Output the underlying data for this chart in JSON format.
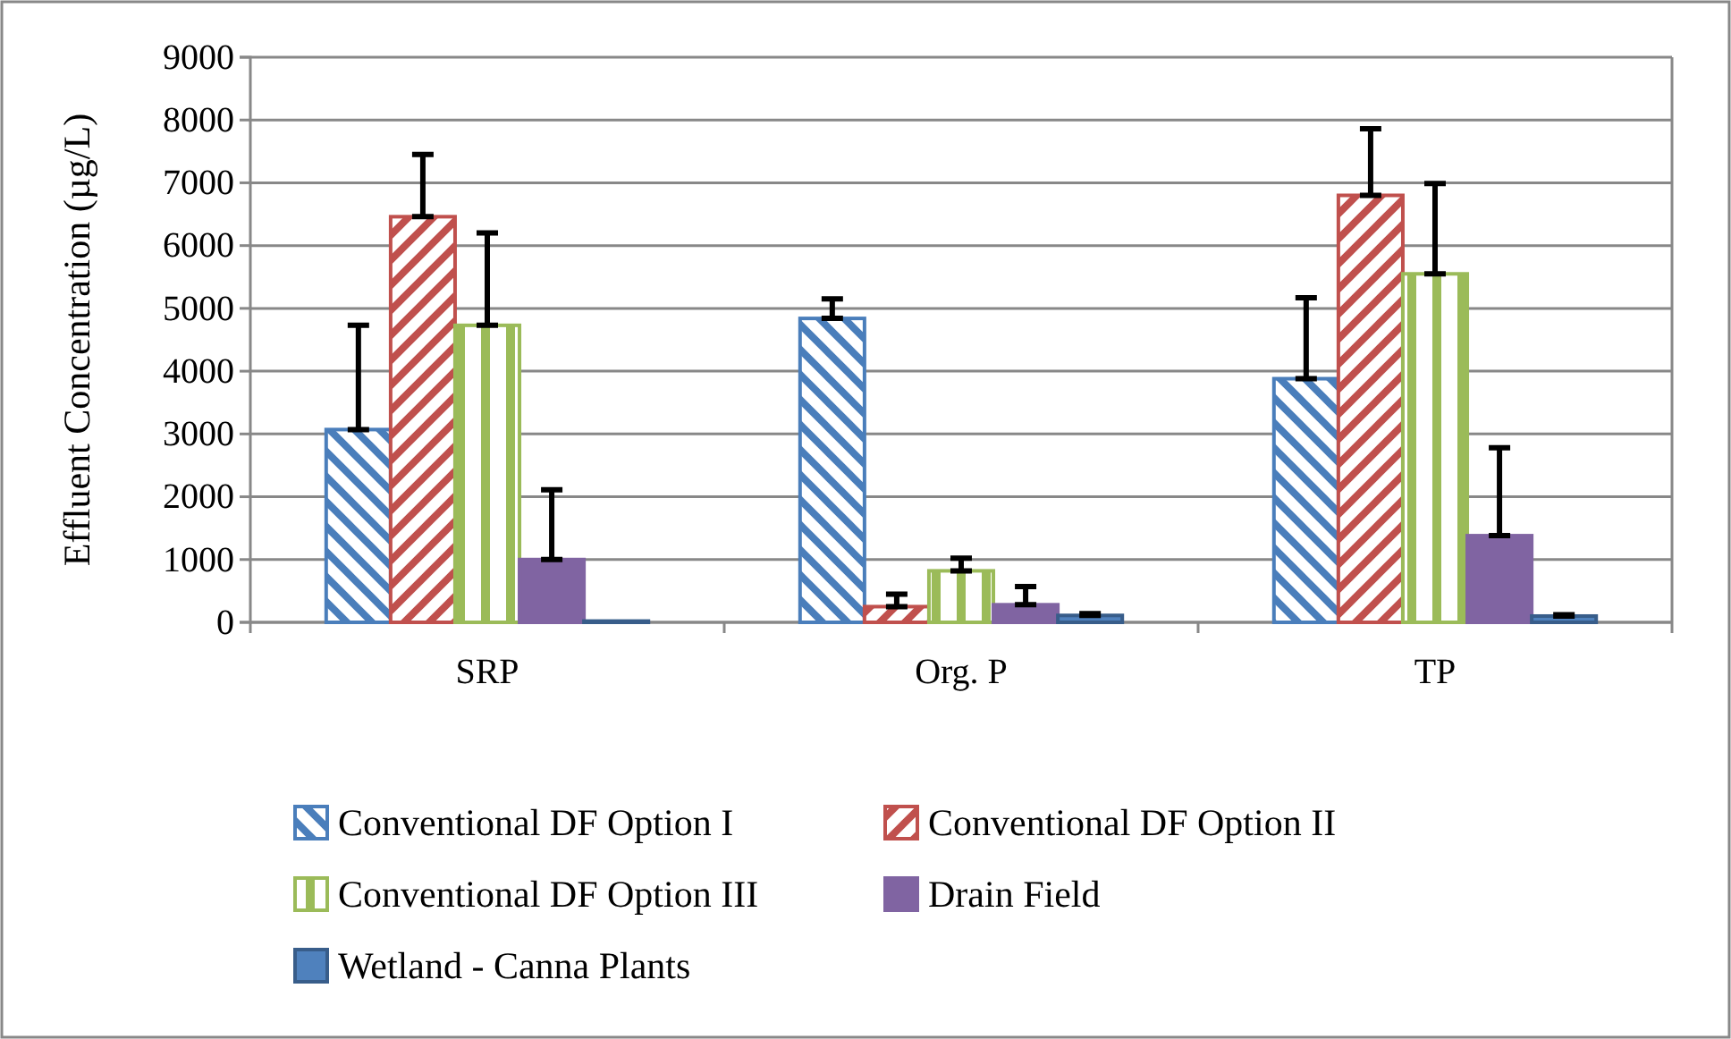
{
  "chart_data": {
    "type": "bar",
    "ylabel": "Effluent Concentration (µg/L)",
    "categories": [
      "SRP",
      "Org. P",
      "TP"
    ],
    "series": [
      {
        "name": "Conventional DF Option I",
        "color": "#4a7ebb",
        "values": [
          3070,
          4840,
          3880
        ],
        "errors": [
          [
            3070,
            4730
          ],
          [
            4840,
            5150
          ],
          [
            3880,
            5170
          ]
        ]
      },
      {
        "name": "Conventional DF Option II",
        "color": "#c0504d",
        "values": [
          6460,
          250,
          6800
        ],
        "errors": [
          [
            6460,
            7450
          ],
          [
            250,
            450
          ],
          [
            6800,
            7860
          ]
        ]
      },
      {
        "name": "Conventional DF Option III",
        "color": "#9bbb59",
        "values": [
          4730,
          820,
          5550
        ],
        "errors": [
          [
            4730,
            6200
          ],
          [
            820,
            1020
          ],
          [
            5550,
            6990
          ]
        ]
      },
      {
        "name": "Drain Field",
        "color": "#8064a2",
        "values": [
          1000,
          280,
          1380
        ],
        "errors": [
          [
            1000,
            2110
          ],
          [
            280,
            570
          ],
          [
            1380,
            2780
          ]
        ]
      },
      {
        "name": "Wetland - Canna Plants",
        "color": "#4f81bd",
        "values": [
          20,
          110,
          100
        ],
        "errors": [
          null,
          [
            110,
            140
          ],
          [
            100,
            120
          ]
        ]
      }
    ],
    "ylim": [
      0,
      9000
    ],
    "yticks": [
      0,
      1000,
      2000,
      3000,
      4000,
      5000,
      6000,
      7000,
      8000,
      9000
    ],
    "grid": "y",
    "legend": "bottom"
  }
}
